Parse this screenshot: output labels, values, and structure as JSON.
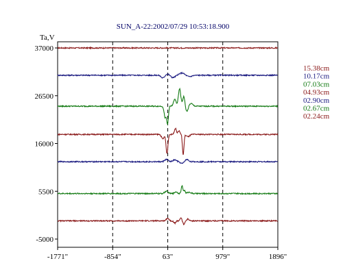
{
  "chart_data": {
    "type": "line",
    "title": "SUN_A-22:2002/07/29 10:53:18.900",
    "ylabel": "Ta,V",
    "xlim": [
      -1771,
      1896
    ],
    "ylim": [
      -5000,
      37000
    ],
    "x_ticks": [
      "-1771\"",
      "-854\"",
      "63\"",
      "979\"",
      "1896\""
    ],
    "y_ticks": [
      "37000",
      "26500",
      "16000",
      "5500",
      "-5000"
    ],
    "x_tick_values": [
      -1771,
      -854,
      63,
      979,
      1896
    ],
    "y_tick_values": [
      37000,
      26500,
      16000,
      5500,
      -5000
    ],
    "vlines": [
      -854,
      63,
      979
    ],
    "grid": false,
    "legend_position": "right",
    "series": [
      {
        "name": "15.38cm",
        "color": "#8b1a1a",
        "baseline": 37000,
        "features": []
      },
      {
        "name": "10.17cm",
        "color": "#1a1a80",
        "baseline": 31000,
        "features": [
          [
            -20,
            -600,
            40
          ],
          [
            60,
            300,
            40
          ],
          [
            150,
            -500,
            50
          ],
          [
            300,
            500,
            60
          ],
          [
            420,
            -300,
            60
          ]
        ]
      },
      {
        "name": "07.03cm",
        "color": "#137a13",
        "baseline": 24200,
        "features": [
          [
            20,
            -2500,
            25
          ],
          [
            60,
            -3800,
            20
          ],
          [
            180,
            1500,
            30
          ],
          [
            260,
            3800,
            28
          ],
          [
            330,
            2200,
            25
          ],
          [
            380,
            -1200,
            30
          ],
          [
            450,
            600,
            40
          ]
        ]
      },
      {
        "name": "04.93cm",
        "color": "#8b1a1a",
        "baseline": 18000,
        "features": [
          [
            -20,
            -1000,
            30
          ],
          [
            50,
            -4200,
            22
          ],
          [
            190,
            1300,
            25
          ],
          [
            250,
            800,
            22
          ],
          [
            320,
            -4500,
            18
          ],
          [
            400,
            -500,
            40
          ]
        ]
      },
      {
        "name": "02.90cm",
        "color": "#1a1a80",
        "baseline": 12000,
        "features": [
          [
            40,
            500,
            40
          ],
          [
            180,
            400,
            40
          ],
          [
            300,
            -400,
            40
          ],
          [
            380,
            500,
            40
          ]
        ]
      },
      {
        "name": "02.67cm",
        "color": "#137a13",
        "baseline": 5000,
        "features": [
          [
            40,
            500,
            40
          ],
          [
            200,
            400,
            30
          ],
          [
            300,
            1700,
            18
          ],
          [
            340,
            700,
            20
          ],
          [
            420,
            300,
            40
          ]
        ]
      },
      {
        "name": "02.24cm",
        "color": "#8b1a1a",
        "baseline": -1000,
        "features": [
          [
            60,
            600,
            30
          ],
          [
            180,
            -500,
            25
          ],
          [
            280,
            700,
            20
          ],
          [
            330,
            -800,
            20
          ],
          [
            400,
            400,
            25
          ]
        ]
      }
    ]
  }
}
